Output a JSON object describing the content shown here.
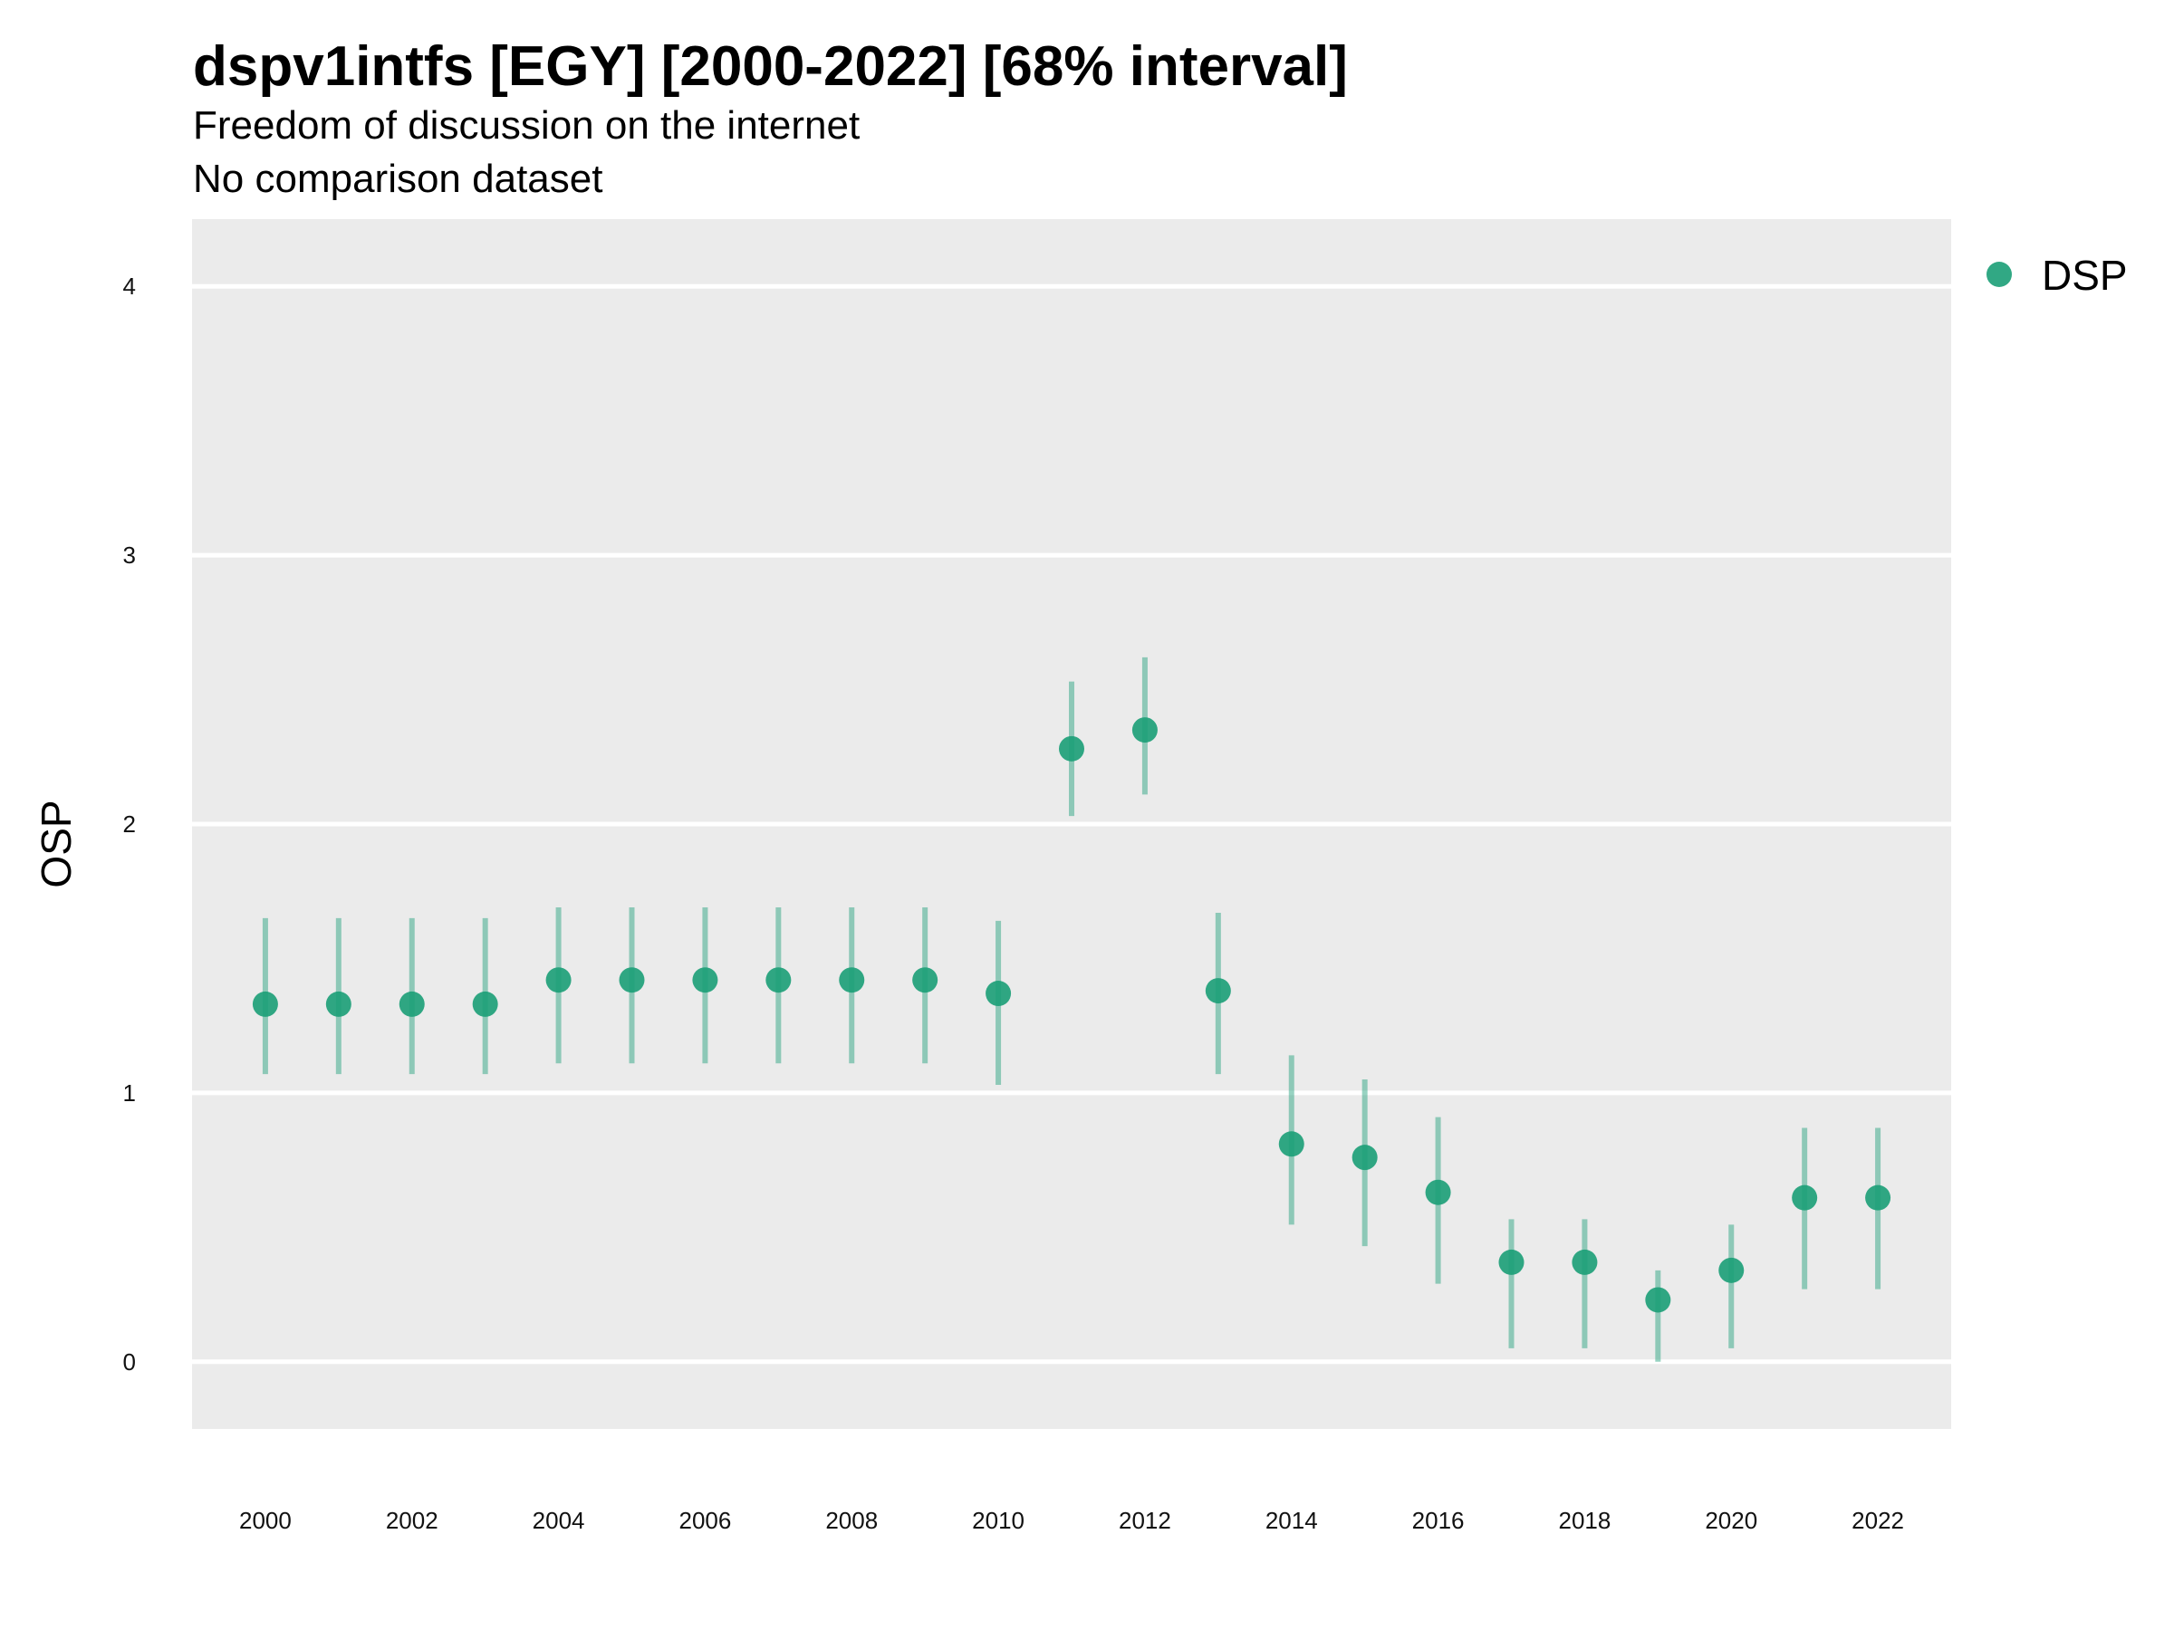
{
  "chart_data": {
    "type": "scatter",
    "title": "dspv1intfs [EGY] [2000-2022] [68% interval]",
    "subtitle": "Freedom of discussion on the internet",
    "subtitle2": "No comparison dataset",
    "xlabel": "",
    "ylabel": "OSP",
    "xlim": [
      1999,
      2023
    ],
    "ylim": [
      -0.25,
      4.25
    ],
    "yticks": [
      0,
      1,
      2,
      3,
      4
    ],
    "xticks": [
      2000,
      2002,
      2004,
      2006,
      2008,
      2010,
      2012,
      2014,
      2016,
      2018,
      2020,
      2022
    ],
    "grid": true,
    "legend_position": "top-right",
    "color": "#1b9e77",
    "series": [
      {
        "name": "DSP",
        "x": [
          2000,
          2001,
          2002,
          2003,
          2004,
          2005,
          2006,
          2007,
          2008,
          2009,
          2010,
          2011,
          2012,
          2013,
          2014,
          2015,
          2016,
          2017,
          2018,
          2019,
          2020,
          2021,
          2022
        ],
        "y": [
          1.33,
          1.33,
          1.33,
          1.33,
          1.42,
          1.42,
          1.42,
          1.42,
          1.42,
          1.42,
          1.37,
          2.28,
          2.35,
          1.38,
          0.81,
          0.76,
          0.63,
          0.37,
          0.37,
          0.23,
          0.34,
          0.61,
          0.61
        ],
        "lower": [
          1.07,
          1.07,
          1.07,
          1.07,
          1.11,
          1.11,
          1.11,
          1.11,
          1.11,
          1.11,
          1.03,
          2.03,
          2.11,
          1.07,
          0.51,
          0.43,
          0.29,
          0.05,
          0.05,
          0.0,
          0.05,
          0.27,
          0.27
        ],
        "upper": [
          1.65,
          1.65,
          1.65,
          1.65,
          1.69,
          1.69,
          1.69,
          1.69,
          1.69,
          1.69,
          1.64,
          2.53,
          2.62,
          1.67,
          1.14,
          1.05,
          0.91,
          0.53,
          0.53,
          0.34,
          0.51,
          0.87,
          0.87
        ]
      }
    ]
  }
}
